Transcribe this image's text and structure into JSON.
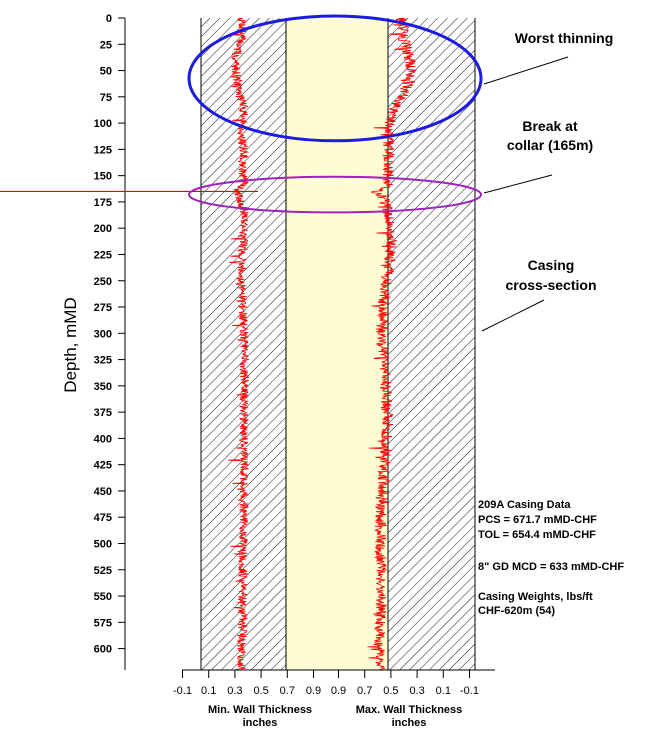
{
  "chart_data": {
    "type": "line",
    "ylabel": "Depth, mMD",
    "yticks": [
      0,
      25,
      50,
      75,
      100,
      125,
      150,
      175,
      200,
      225,
      250,
      275,
      300,
      325,
      350,
      375,
      400,
      425,
      450,
      475,
      500,
      525,
      550,
      575,
      600
    ],
    "ylim": [
      0,
      620
    ],
    "left_track": {
      "xlabel": "Min. Wall Thickness",
      "units": "inches",
      "xticks": [
        "-0.1",
        "0.1",
        "0.3",
        "0.5",
        "0.7",
        "0.9"
      ],
      "xlim": [
        -0.1,
        0.9
      ],
      "series": [
        {
          "x_profile": [
            [
              0,
              0.35
            ],
            [
              10,
              0.36
            ],
            [
              20,
              0.35
            ],
            [
              30,
              0.32
            ],
            [
              40,
              0.3
            ],
            [
              50,
              0.31
            ],
            [
              60,
              0.32
            ],
            [
              70,
              0.33
            ],
            [
              80,
              0.36
            ],
            [
              90,
              0.37
            ],
            [
              100,
              0.36
            ],
            [
              110,
              0.35
            ],
            [
              120,
              0.36
            ],
            [
              130,
              0.37
            ],
            [
              140,
              0.36
            ],
            [
              150,
              0.36
            ],
            [
              160,
              0.37
            ],
            [
              165,
              0.3
            ],
            [
              170,
              0.34
            ],
            [
              180,
              0.36
            ],
            [
              190,
              0.38
            ],
            [
              200,
              0.37
            ],
            [
              225,
              0.36
            ],
            [
              250,
              0.35
            ],
            [
              275,
              0.36
            ],
            [
              300,
              0.37
            ],
            [
              325,
              0.37
            ],
            [
              350,
              0.37
            ],
            [
              375,
              0.37
            ],
            [
              400,
              0.37
            ],
            [
              425,
              0.37
            ],
            [
              450,
              0.37
            ],
            [
              475,
              0.37
            ],
            [
              500,
              0.36
            ],
            [
              525,
              0.36
            ],
            [
              550,
              0.36
            ],
            [
              575,
              0.36
            ],
            [
              600,
              0.35
            ],
            [
              620,
              0.35
            ]
          ]
        }
      ]
    },
    "right_track": {
      "xlabel": "Max. Wall Thickness",
      "units": "inches",
      "xticks": [
        "0.9",
        "0.7",
        "0.5",
        "0.3",
        "0.1",
        "-0.1"
      ],
      "xlim": [
        0.9,
        -0.1
      ],
      "series": [
        {
          "x_profile": [
            [
              0,
              0.42
            ],
            [
              10,
              0.41
            ],
            [
              20,
              0.4
            ],
            [
              30,
              0.38
            ],
            [
              40,
              0.36
            ],
            [
              50,
              0.34
            ],
            [
              60,
              0.36
            ],
            [
              70,
              0.4
            ],
            [
              80,
              0.45
            ],
            [
              90,
              0.48
            ],
            [
              100,
              0.5
            ],
            [
              110,
              0.51
            ],
            [
              120,
              0.52
            ],
            [
              130,
              0.52
            ],
            [
              140,
              0.52
            ],
            [
              150,
              0.52
            ],
            [
              160,
              0.53
            ],
            [
              165,
              0.62
            ],
            [
              170,
              0.56
            ],
            [
              180,
              0.53
            ],
            [
              190,
              0.51
            ],
            [
              200,
              0.5
            ],
            [
              225,
              0.5
            ],
            [
              250,
              0.53
            ],
            [
              275,
              0.56
            ],
            [
              300,
              0.57
            ],
            [
              325,
              0.56
            ],
            [
              350,
              0.54
            ],
            [
              375,
              0.53
            ],
            [
              400,
              0.53
            ],
            [
              425,
              0.55
            ],
            [
              450,
              0.56
            ],
            [
              475,
              0.58
            ],
            [
              500,
              0.58
            ],
            [
              525,
              0.57
            ],
            [
              550,
              0.57
            ],
            [
              575,
              0.58
            ],
            [
              600,
              0.59
            ],
            [
              620,
              0.59
            ]
          ]
        }
      ]
    },
    "reference_line_depth": 165,
    "annotations": [
      {
        "id": "worst-thinning",
        "lines": [
          "Worst thinning"
        ],
        "color": "#1c1ce0",
        "depth_range": [
          0,
          115
        ]
      },
      {
        "id": "break-at-collar",
        "lines": [
          "Break at",
          "collar (165m)"
        ],
        "color": "#a020c0",
        "depth_range": [
          153,
          183
        ]
      },
      {
        "id": "casing-cross-section",
        "lines": [
          "Casing",
          "cross-section"
        ]
      }
    ],
    "info_text": [
      "209A Casing Data",
      "PCS = 671.7 mMD-CHF",
      "TOL = 654.4 mMD-CHF",
      "8\" GD MCD = 633 mMD-CHF",
      "Casing Weights, lbs/ft",
      "CHF-620m   (54)"
    ]
  },
  "colors": {
    "trace": "#ff0000",
    "inner_fill": "#fefcd2",
    "hatch": "#000000",
    "worst_ellipse": "#1c1ce0",
    "collar_ellipse": "#a020c0",
    "reference_line": "#e8000b"
  }
}
